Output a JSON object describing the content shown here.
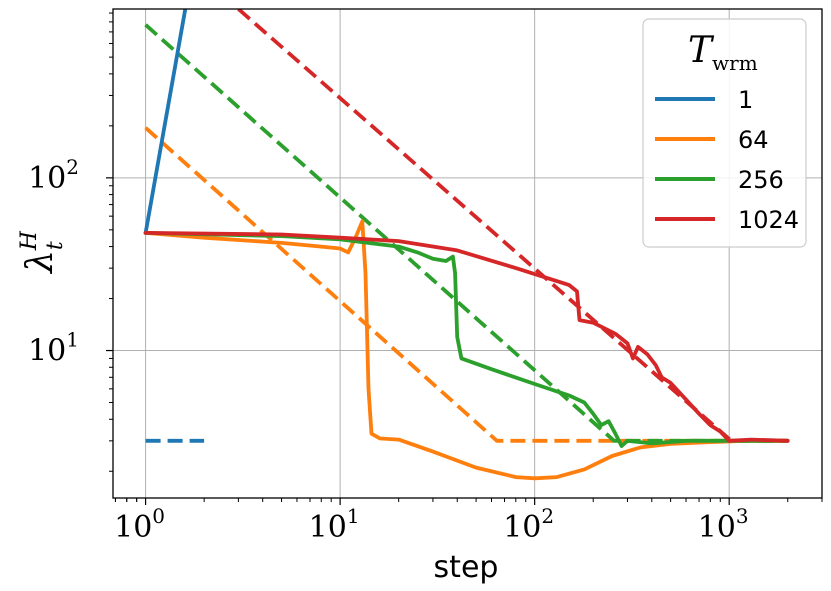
{
  "chart_data": {
    "type": "line",
    "xlabel": "step",
    "ylabel": "λ_t^H",
    "xscale": "log",
    "yscale": "log",
    "xlim": [
      0.68,
      3000
    ],
    "ylim": [
      1.4,
      950
    ],
    "x_ticks": [
      {
        "value": 1,
        "base": "10",
        "exp": "0"
      },
      {
        "value": 10,
        "base": "10",
        "exp": "1"
      },
      {
        "value": 100,
        "base": "10",
        "exp": "2"
      },
      {
        "value": 1000,
        "base": "10",
        "exp": "3"
      }
    ],
    "y_ticks": [
      {
        "value": 10,
        "base": "10",
        "exp": "1"
      },
      {
        "value": 100,
        "base": "10",
        "exp": "2"
      }
    ],
    "grid": true,
    "legend": {
      "position": "top-right",
      "title_main": "T",
      "title_sub": "wrm",
      "entries": [
        "1",
        "64",
        "256",
        "1024"
      ]
    },
    "series": [
      {
        "name": "1",
        "color": "#1f77b4",
        "solid": [
          [
            1,
            48
          ],
          [
            1.6,
            950
          ]
        ],
        "dashed": [
          [
            1,
            3
          ],
          [
            2,
            3
          ]
        ]
      },
      {
        "name": "64",
        "color": "#ff7f0e",
        "solid": [
          [
            1,
            48
          ],
          [
            2,
            45
          ],
          [
            5,
            42
          ],
          [
            8,
            40
          ],
          [
            10,
            39
          ],
          [
            11,
            37
          ],
          [
            12,
            45
          ],
          [
            13,
            56
          ],
          [
            13.5,
            28
          ],
          [
            14,
            6
          ],
          [
            14.5,
            3.3
          ],
          [
            16,
            3.1
          ],
          [
            20,
            3.05
          ],
          [
            30,
            2.6
          ],
          [
            50,
            2.1
          ],
          [
            80,
            1.85
          ],
          [
            100,
            1.82
          ],
          [
            130,
            1.85
          ],
          [
            180,
            2.05
          ],
          [
            250,
            2.45
          ],
          [
            350,
            2.75
          ],
          [
            500,
            2.88
          ],
          [
            800,
            2.95
          ],
          [
            1200,
            3
          ],
          [
            2000,
            3
          ]
        ],
        "dashed": [
          [
            1,
            195
          ],
          [
            64,
            3
          ],
          [
            2000,
            3
          ]
        ]
      },
      {
        "name": "256",
        "color": "#2ca02c",
        "solid": [
          [
            1,
            48
          ],
          [
            5,
            46
          ],
          [
            10,
            44
          ],
          [
            20,
            40
          ],
          [
            25,
            37
          ],
          [
            30,
            34
          ],
          [
            35,
            33
          ],
          [
            38,
            35
          ],
          [
            39,
            28
          ],
          [
            40,
            12
          ],
          [
            42,
            9
          ],
          [
            60,
            7.8
          ],
          [
            100,
            6.4
          ],
          [
            150,
            5.5
          ],
          [
            180,
            5
          ],
          [
            200,
            4.3
          ],
          [
            220,
            3.7
          ],
          [
            240,
            3.9
          ],
          [
            260,
            3.3
          ],
          [
            280,
            2.8
          ],
          [
            300,
            3
          ],
          [
            400,
            2.9
          ],
          [
            600,
            3
          ],
          [
            1000,
            3
          ],
          [
            2000,
            3
          ]
        ],
        "dashed": [
          [
            1,
            770
          ],
          [
            256,
            3
          ],
          [
            2000,
            3
          ]
        ]
      },
      {
        "name": "1024",
        "color": "#d62728",
        "solid": [
          [
            1,
            48
          ],
          [
            5,
            47
          ],
          [
            10,
            45
          ],
          [
            20,
            43
          ],
          [
            40,
            38
          ],
          [
            80,
            30
          ],
          [
            150,
            24
          ],
          [
            165,
            22
          ],
          [
            170,
            15
          ],
          [
            200,
            14.5
          ],
          [
            260,
            12.5
          ],
          [
            300,
            11
          ],
          [
            320,
            9
          ],
          [
            340,
            10.5
          ],
          [
            380,
            9.5
          ],
          [
            420,
            8.2
          ],
          [
            450,
            7
          ],
          [
            500,
            6.5
          ],
          [
            600,
            5.2
          ],
          [
            700,
            4.3
          ],
          [
            800,
            3.7
          ],
          [
            900,
            3.4
          ],
          [
            1000,
            3
          ],
          [
            1300,
            3.05
          ],
          [
            2000,
            3
          ]
        ],
        "dashed": [
          [
            3,
            950
          ],
          [
            1024,
            3
          ],
          [
            2000,
            3
          ]
        ]
      }
    ]
  }
}
